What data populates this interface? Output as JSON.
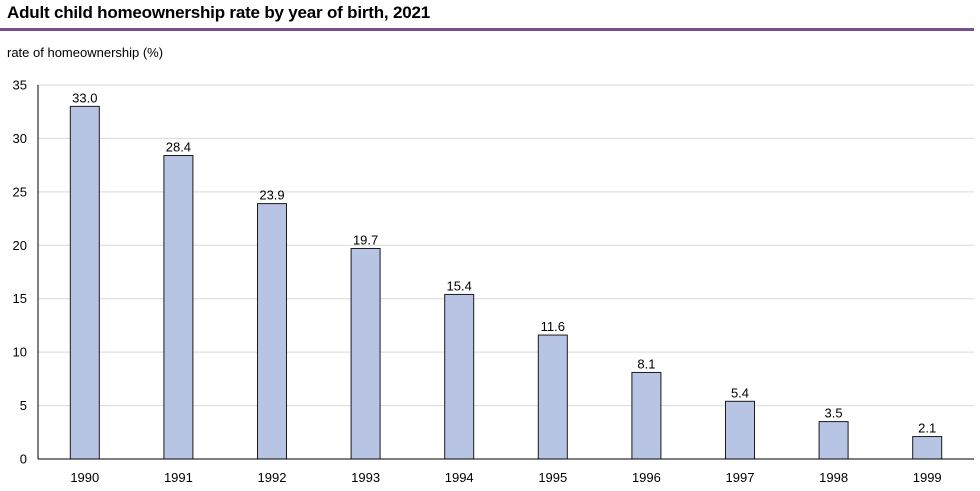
{
  "header": {
    "title": "Adult child homeownership rate by year of birth, 2021"
  },
  "colors": {
    "bar_fill": "#b8c4e4",
    "bar_stroke": "#1a1a1a",
    "grid": "#d9d9d9",
    "rule": "#7a4f8c"
  },
  "chart_data": {
    "type": "bar",
    "title": "Adult child homeownership rate by year of birth, 2021",
    "xlabel": "",
    "ylabel": "rate of homeownership (%)",
    "categories": [
      "1990",
      "1991",
      "1992",
      "1993",
      "1994",
      "1995",
      "1996",
      "1997",
      "1998",
      "1999"
    ],
    "values": [
      33.0,
      28.4,
      23.9,
      19.7,
      15.4,
      11.6,
      8.1,
      5.4,
      3.5,
      2.1
    ],
    "data_labels": [
      "33.0",
      "28.4",
      "23.9",
      "19.7",
      "15.4",
      "11.6",
      "8.1",
      "5.4",
      "3.5",
      "2.1"
    ],
    "ylim": [
      0,
      35
    ],
    "yticks": [
      0,
      5,
      10,
      15,
      20,
      25,
      30,
      35
    ],
    "grid": true,
    "legend": "none"
  }
}
